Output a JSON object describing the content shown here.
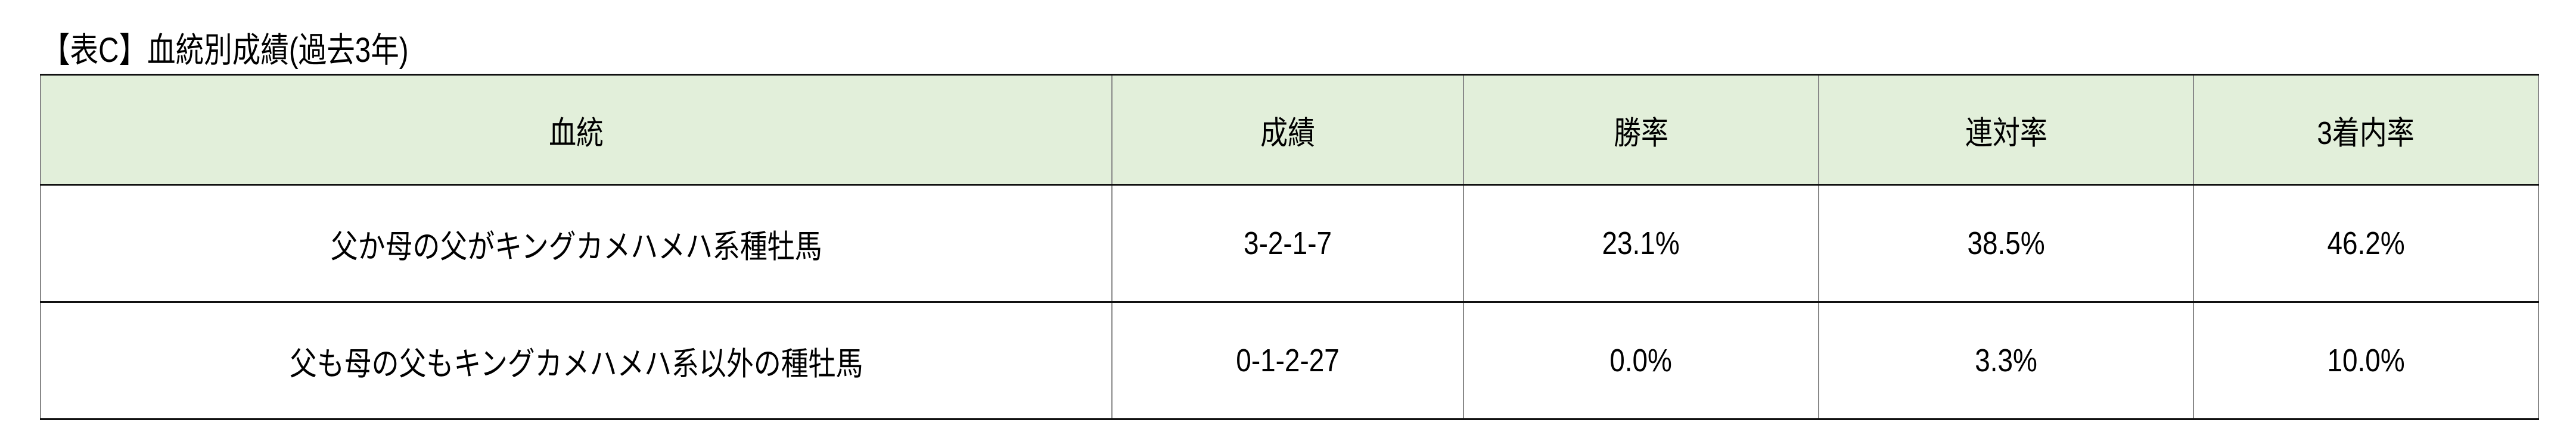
{
  "title": "【表C】血統別成績(過去3年)",
  "table": {
    "headers": [
      "血統",
      "成績",
      "勝率",
      "連対率",
      "3着内率"
    ],
    "header_bg": "#e2efda",
    "rows": [
      [
        "父か母の父がキングカメハメハ系種牡馬",
        "3-2-1-7",
        "23.1%",
        "38.5%",
        "46.2%"
      ],
      [
        "父も母の父もキングカメハメハ系以外の種牡馬",
        "0-1-2-27",
        "0.0%",
        "3.3%",
        "10.0%"
      ]
    ]
  }
}
